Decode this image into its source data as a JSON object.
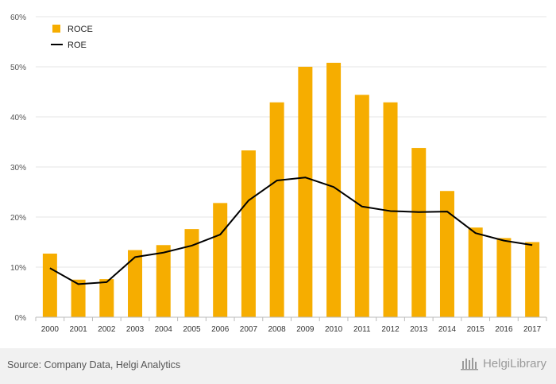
{
  "chart_data": {
    "type": "bar",
    "categories": [
      "2000",
      "2001",
      "2002",
      "2003",
      "2004",
      "2005",
      "2006",
      "2007",
      "2008",
      "2009",
      "2010",
      "2011",
      "2012",
      "2013",
      "2014",
      "2015",
      "2016",
      "2017"
    ],
    "series": [
      {
        "name": "ROCE",
        "type": "bar",
        "color": "#f6ad00",
        "values": [
          12.7,
          7.5,
          7.6,
          13.4,
          14.4,
          17.6,
          22.8,
          33.3,
          42.9,
          50.0,
          50.8,
          44.4,
          42.9,
          33.8,
          25.2,
          17.9,
          15.8,
          15.0
        ]
      },
      {
        "name": "ROE",
        "type": "line",
        "color": "#000000",
        "values": [
          9.8,
          6.6,
          7.0,
          12.0,
          12.9,
          14.3,
          16.5,
          23.3,
          27.3,
          27.9,
          26.0,
          22.1,
          21.2,
          21.0,
          21.1,
          16.8,
          15.3,
          14.4
        ]
      }
    ],
    "ylim": [
      0,
      60
    ],
    "yticks": [
      "0%",
      "10%",
      "20%",
      "30%",
      "40%",
      "50%",
      "60%"
    ],
    "grid": true,
    "legend_position": "top-left"
  },
  "footer": {
    "source": "Source: Company Data, Helgi Analytics",
    "brand": "HelgiLibrary"
  }
}
